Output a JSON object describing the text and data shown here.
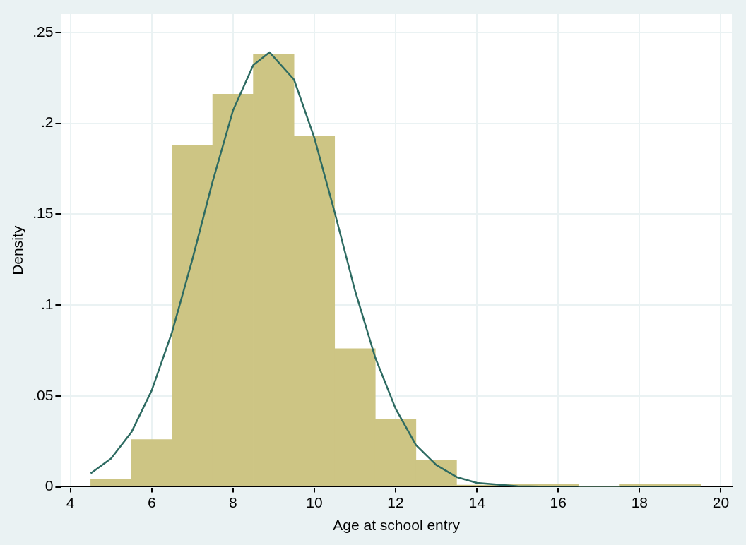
{
  "chart_data": {
    "type": "histogram",
    "xlabel": "Age at school entry",
    "ylabel": "Density",
    "bins": [
      4.5,
      5.5,
      6.5,
      7.5,
      8.5,
      9.5,
      10.5,
      11.5,
      12.5,
      13.5,
      14.5,
      15.5,
      16.5,
      17.5,
      18.5,
      19.5
    ],
    "values": [
      0.004,
      0.026,
      0.188,
      0.216,
      0.238,
      0.193,
      0.076,
      0.037,
      0.0145,
      0.001,
      0.0015,
      0.0015,
      0,
      0.0015,
      0.0015
    ],
    "color": "#cdc584",
    "series": [
      {
        "type": "line",
        "color": "#2e6b62",
        "x": [
          4.5,
          5,
          5.5,
          6,
          6.5,
          7,
          7.5,
          8,
          8.5,
          8.9,
          9.5,
          10,
          10.5,
          11,
          11.5,
          12,
          12.5,
          13,
          13.5,
          14,
          15,
          16,
          17,
          18,
          19.5
        ],
        "values": [
          0.0074,
          0.0156,
          0.03,
          0.053,
          0.085,
          0.125,
          0.168,
          0.207,
          0.232,
          0.239,
          0.224,
          0.192,
          0.151,
          0.108,
          0.071,
          0.043,
          0.023,
          0.012,
          0.0054,
          0.0022,
          0.0003,
          0,
          0,
          0,
          0
        ]
      }
    ],
    "xlim": [
      3.77,
      20.27
    ],
    "xticks": [
      4,
      6,
      8,
      10,
      12,
      14,
      16,
      18,
      20
    ],
    "ylim": [
      0,
      0.26
    ],
    "yticks": [
      0,
      {
        "value": 0.05,
        "label": ".05"
      },
      {
        "value": 0.1,
        "label": ".1"
      },
      {
        "value": 0.15,
        "label": ".15"
      },
      {
        "value": 0.2,
        "label": ".2"
      },
      {
        "value": 0.25,
        "label": ".25"
      }
    ],
    "grid": true,
    "legend": false,
    "marker": "none",
    "line_style": "solid"
  }
}
